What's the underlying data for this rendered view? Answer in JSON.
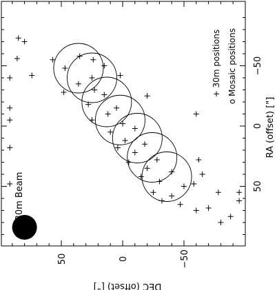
{
  "chart_data": {
    "type": "scatter",
    "orientation_note": "figure rotated 90 degrees counter-clockwise",
    "xlabel": "RA (offset) [\"]",
    "ylabel": "DEC (offset) [\"]",
    "ra_range": [
      95,
      -95
    ],
    "dec_range": [
      100,
      -95
    ],
    "ra_ticks": [
      50,
      0,
      -50
    ],
    "ra_tick_labels": [
      "50",
      "0",
      "−50"
    ],
    "dec_ticks": [
      50,
      0,
      -50
    ],
    "dec_tick_labels": [
      "50",
      "0",
      "−50"
    ],
    "legend": {
      "plus_label": "30m positions",
      "circle_label": "Mosaic positions",
      "plus_symbol": "+",
      "circle_symbol": "o",
      "placement": "upper-right"
    },
    "beam": {
      "label": "30m Beam",
      "ra": 84,
      "dec": 80
    },
    "mosaic_circles": [
      {
        "ra": -48,
        "dec": 36
      },
      {
        "ra": -40,
        "dec": 25
      },
      {
        "ra": -20,
        "dec": 13
      },
      {
        "ra": -5,
        "dec": 2
      },
      {
        "ra": 10,
        "dec": -12
      },
      {
        "ra": 26,
        "dec": -24
      },
      {
        "ra": 42,
        "dec": -36
      }
    ],
    "positions_30m": [
      {
        "ra": -73,
        "dec": 85
      },
      {
        "ra": -56,
        "dec": 86
      },
      {
        "ra": -42,
        "dec": 74
      },
      {
        "ra": -55,
        "dec": 57
      },
      {
        "ra": -58,
        "dec": 35
      },
      {
        "ra": -55,
        "dec": 24
      },
      {
        "ra": -48,
        "dec": 47
      },
      {
        "ra": -70,
        "dec": 80
      },
      {
        "ra": -50,
        "dec": 15
      },
      {
        "ra": -42,
        "dec": 2
      },
      {
        "ra": -30,
        "dec": 23
      },
      {
        "ra": -35,
        "dec": 36
      },
      {
        "ra": -28,
        "dec": 48
      },
      {
        "ra": -40,
        "dec": 25
      },
      {
        "ra": -26,
        "dec": 15
      },
      {
        "ra": -18,
        "dec": 28
      },
      {
        "ra": -15,
        "dec": 5
      },
      {
        "ra": -10,
        "dec": 12
      },
      {
        "ra": -5,
        "dec": 25
      },
      {
        "ra": -2,
        "dec": 0
      },
      {
        "ra": 2,
        "dec": -10
      },
      {
        "ra": 5,
        "dec": 10
      },
      {
        "ra": 12,
        "dec": -2
      },
      {
        "ra": 15,
        "dec": -18
      },
      {
        "ra": 18,
        "dec": 4
      },
      {
        "ra": 22,
        "dec": -10
      },
      {
        "ra": 28,
        "dec": -28
      },
      {
        "ra": 30,
        "dec": -5
      },
      {
        "ra": 35,
        "dec": -20
      },
      {
        "ra": 38,
        "dec": -40
      },
      {
        "ra": 42,
        "dec": -15
      },
      {
        "ra": 46,
        "dec": -30
      },
      {
        "ra": 50,
        "dec": -50
      },
      {
        "ra": 55,
        "dec": -25
      },
      {
        "ra": 58,
        "dec": -40
      },
      {
        "ra": 62,
        "dec": -32
      },
      {
        "ra": 65,
        "dec": -47
      },
      {
        "ra": -25,
        "dec": -20
      },
      {
        "ra": -5,
        "dec": 92
      },
      {
        "ra": 40,
        "dec": -65
      },
      {
        "ra": 48,
        "dec": -58
      },
      {
        "ra": 55,
        "dec": -78
      },
      {
        "ra": 62,
        "dec": -95
      },
      {
        "ra": 75,
        "dec": -88
      },
      {
        "ra": 68,
        "dec": -70
      },
      {
        "ra": -10,
        "dec": -60
      },
      {
        "ra": 28,
        "dec": -62
      },
      {
        "ra": 80,
        "dec": -80
      },
      {
        "ra": 55,
        "dec": -95
      },
      {
        "ra": -40,
        "dec": 92
      },
      {
        "ra": -15,
        "dec": 92
      },
      {
        "ra": 18,
        "dec": 92
      },
      {
        "ra": 48,
        "dec": 92
      },
      {
        "ra": 70,
        "dec": -60
      }
    ]
  }
}
